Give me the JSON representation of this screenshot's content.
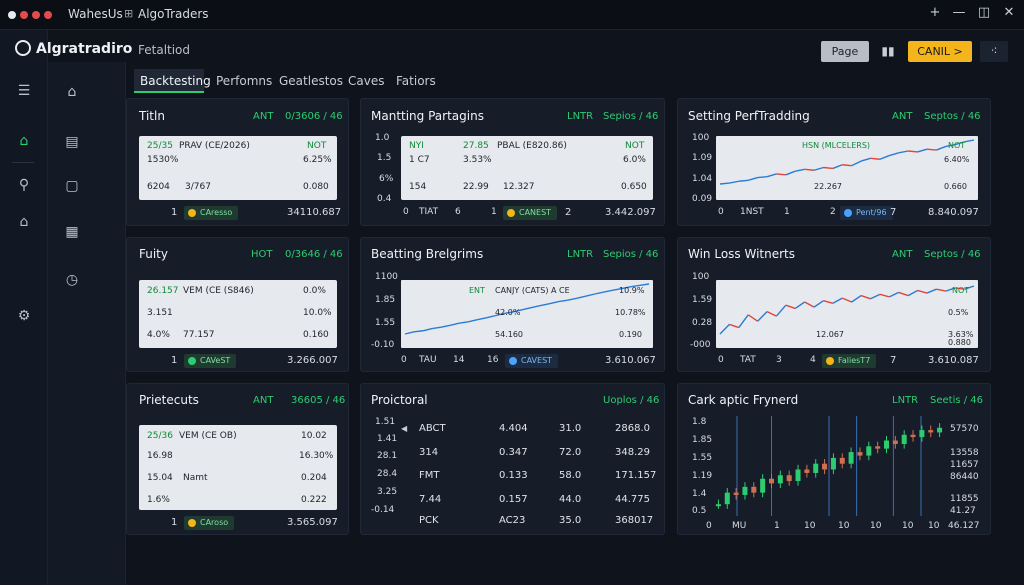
{
  "titlebar": {
    "menu": "WahesUs",
    "app": "AlgoTraders",
    "ctl_add": "+",
    "ctl_min": "—",
    "ctl_split": "◫",
    "ctl_close": "✕"
  },
  "header": {
    "brand": "Algratradiro",
    "page_title": "Fetaltiod",
    "btn_page": "Page",
    "btn_cancel": "CANIL >",
    "btn_more": "⁖"
  },
  "tabs": [
    {
      "label": "Backtesting"
    },
    {
      "label": "Perfomns"
    },
    {
      "label": "Geatlestos"
    },
    {
      "label": "Caves"
    },
    {
      "label": "Fatiors"
    }
  ],
  "panels": {
    "p1": {
      "title": "Titln",
      "tag": "ANT",
      "value": "0/3606 / 46",
      "card": [
        [
          "25/35",
          "PRAV (CE/2026)",
          "NOT"
        ],
        [
          "1530%",
          "",
          "6.25%"
        ],
        [
          "6204",
          "3/767",
          "0.080"
        ]
      ],
      "foot_left": "1",
      "pill": "CAresso",
      "foot_right": "34110.687"
    },
    "p2": {
      "title": "Mantting Partagins",
      "tag": "LNTR",
      "value": "Sepios / 46",
      "yaxis": [
        "1.0",
        "1.5",
        "6%",
        "0.4"
      ],
      "xaxis": [
        "0",
        "TIAT",
        "6",
        "1"
      ],
      "card": [
        [
          "NYI",
          "27.85",
          "PBAL (E820.86)",
          "NOT"
        ],
        [
          "1 C7",
          "3.53%",
          "",
          "6.0%"
        ],
        [
          "154",
          "22.99",
          "12.327",
          "0.650"
        ]
      ],
      "pill": "CANEST",
      "foot_mid": "2",
      "foot_right": "3.442.097"
    },
    "p3": {
      "title": "Setting PerfTradding",
      "tag": "ANT",
      "value": "Septos / 46",
      "yaxis": [
        "100",
        "1.09",
        "1.04",
        "0.09"
      ],
      "xaxis": [
        "0",
        "1NST",
        "1",
        "2"
      ],
      "labels": [
        "HSN (MLCELERS)",
        "NOT",
        "6.40%",
        "22.267",
        "0.660"
      ],
      "series": {
        "name": "",
        "values": [
          1.02,
          1.03,
          1.05,
          1.06,
          1.09,
          1.1,
          1.13,
          1.12,
          1.16,
          1.18,
          1.17,
          1.2,
          1.19,
          1.23,
          1.22,
          1.27,
          1.3,
          1.29,
          1.33,
          1.36,
          1.38,
          1.37,
          1.4,
          1.39,
          1.43,
          1.45,
          1.48,
          1.5
        ]
      },
      "pill": "Pent/96",
      "foot_mid": "7",
      "foot_right": "8.840.097"
    },
    "p4": {
      "title": "Fuity",
      "tag": "HOT",
      "value": "0/3646 / 46",
      "card": [
        [
          "26.157",
          "VEM (CE (S846)",
          "0.0%"
        ],
        [
          "3.151",
          "",
          "10.0%"
        ],
        [
          "4.0%",
          "77.157",
          "0.160"
        ]
      ],
      "foot_left": "1",
      "pill": "CAVeST",
      "foot_right": "3.266.007"
    },
    "p5": {
      "title": "Beatting Brelgrims",
      "tag": "LNTR",
      "value": "Sepios / 46",
      "yaxis": [
        "1100",
        "1.85",
        "1.55",
        "-0.10"
      ],
      "xaxis": [
        "0",
        "TAU",
        "14",
        "16"
      ],
      "labels": [
        "ENT",
        "CANJY (CATS) A CE",
        "10.9%",
        "42.0%",
        "10.78%",
        "54.160",
        "0.190"
      ],
      "series": {
        "name": "",
        "values": [
          0.1,
          0.18,
          0.22,
          0.3,
          0.35,
          0.42,
          0.5,
          0.55,
          0.63,
          0.7,
          0.78,
          0.86,
          0.92,
          1.0,
          1.08,
          1.15,
          1.22,
          1.3,
          1.35,
          1.42,
          1.5,
          1.58,
          1.65,
          1.72,
          1.78,
          1.85,
          1.9,
          1.95
        ]
      },
      "pill": "CAVEST",
      "foot_right": "3.610.067"
    },
    "p6": {
      "title": "Win Loss Witnerts",
      "tag": "ANT",
      "value": "Septos / 46",
      "yaxis": [
        "100",
        "1.59",
        "0.28",
        "-000"
      ],
      "xaxis": [
        "0",
        "TAT",
        "3",
        "4"
      ],
      "labels": [
        "NOT",
        "0.5%",
        "3.63%",
        "12.067",
        "0.880"
      ],
      "series": {
        "name": "",
        "values": [
          0.1,
          0.25,
          0.2,
          0.4,
          0.3,
          0.45,
          0.38,
          0.55,
          0.5,
          0.6,
          0.52,
          0.62,
          0.58,
          0.66,
          0.6,
          0.7,
          0.65,
          0.72,
          0.68,
          0.75,
          0.7,
          0.78,
          0.74,
          0.8,
          0.77,
          0.82,
          0.8,
          0.85
        ]
      },
      "pill": "FaliesT7",
      "foot_mid": "7",
      "foot_right": "3.610.087"
    },
    "p7": {
      "title": "Prietecuts",
      "tag": "ANT",
      "value": "36605 / 46",
      "card": [
        [
          "25/36",
          "VEM (CE OB)",
          "10.02"
        ],
        [
          "16.98",
          "",
          "16.30%"
        ],
        [
          "15.04",
          "Namt",
          "0.204"
        ],
        [
          "1.6%",
          "",
          "0.222"
        ]
      ],
      "foot_left": "1",
      "pill": "CAroso",
      "foot_right": "3.565.097"
    },
    "p8": {
      "title": "Proictoral",
      "value": "Uoplos / 46",
      "yaxis": [
        "1.51",
        "1.41",
        "28.1",
        "28.4",
        "3.25",
        "-0.14"
      ],
      "rows": [
        [
          "ABCT",
          "4.404",
          "31.0",
          "2868.0"
        ],
        [
          "314",
          "0.347",
          "72.0",
          "348.29"
        ],
        [
          "FMT",
          "0.133",
          "58.0",
          "171.157"
        ],
        [
          "7.44",
          "0.157",
          "44.0",
          "44.775"
        ],
        [
          "PCK",
          "AC23",
          "35.0",
          "368017"
        ]
      ]
    },
    "p9": {
      "title": "Cark aptic Frynerd",
      "tag": "LNTR",
      "value": "Seetis / 46",
      "yaxis": [
        "1.8",
        "1.85",
        "1.55",
        "1.19",
        "1.4",
        "0.5"
      ],
      "right_axis": [
        "57570",
        "13558",
        "11657",
        "86440",
        "11855",
        "41.27"
      ],
      "xaxis": [
        "0",
        "MU",
        "1",
        "10",
        "10",
        "10",
        "10",
        "10",
        "10",
        "46.127"
      ],
      "series": {
        "name": "",
        "values": [
          0.2,
          0.3,
          0.28,
          0.35,
          0.3,
          0.42,
          0.38,
          0.45,
          0.4,
          0.5,
          0.47,
          0.55,
          0.5,
          0.6,
          0.55,
          0.65,
          0.62,
          0.7,
          0.68,
          0.75,
          0.72,
          0.8,
          0.78,
          0.84,
          0.82,
          0.86
        ]
      }
    }
  },
  "rail": {
    "icons": [
      "menu-icon",
      "home-icon",
      "dashboard-icon",
      "document-icon",
      "chart-tool-icon",
      "square-icon",
      "house-icon",
      "briefcase-icon",
      "clock-icon",
      "settings-icon"
    ]
  },
  "colors": {
    "accent": "#2ecc71",
    "cancel": "#f4b41b",
    "up": "#2b7bd6",
    "down": "#e0463c"
  }
}
